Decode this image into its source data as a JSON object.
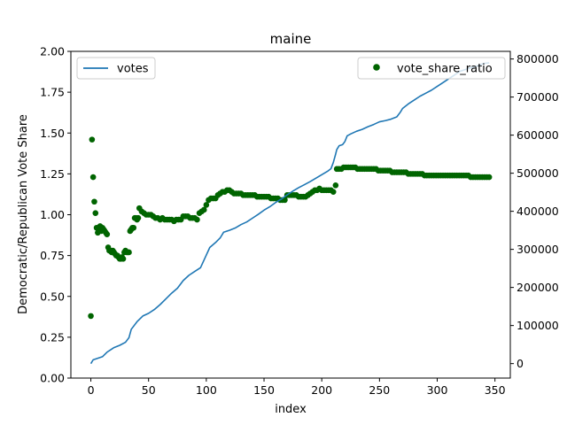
{
  "chart_data": {
    "type": "line+scatter",
    "title": "maine",
    "xlabel": "index",
    "ylabel": "Democratic/Republican Vote Share",
    "xlim": [
      -17.3,
      363.3
    ],
    "ylim": [
      0,
      2
    ],
    "y2lim": [
      -38000,
      820000
    ],
    "xticks": [
      0,
      50,
      100,
      150,
      200,
      250,
      300,
      350
    ],
    "yticks": [
      0.0,
      0.25,
      0.5,
      0.75,
      1.0,
      1.25,
      1.5,
      1.75,
      2.0
    ],
    "ytick_labels": [
      "0.00",
      "0.25",
      "0.50",
      "0.75",
      "1.00",
      "1.25",
      "1.50",
      "1.75",
      "2.00"
    ],
    "y2ticks": [
      0,
      100000,
      200000,
      300000,
      400000,
      500000,
      600000,
      700000,
      800000
    ],
    "y2tick_labels": [
      "0",
      "100000",
      "200000",
      "300000",
      "400000",
      "500000",
      "600000",
      "700000",
      "800000"
    ],
    "grid": false,
    "legend_left": {
      "placement": "upper-left",
      "entries": [
        "votes"
      ]
    },
    "legend_right": {
      "placement": "upper-right",
      "entries": [
        "vote_share_ratio"
      ]
    },
    "colors": {
      "votes": "#1f77b4",
      "vote_share_ratio": "#006400"
    },
    "votes_series": {
      "name": "votes",
      "axis": "right",
      "points": [
        [
          0,
          0
        ],
        [
          2,
          10000
        ],
        [
          10,
          18000
        ],
        [
          14,
          30000
        ],
        [
          20,
          42000
        ],
        [
          25,
          48000
        ],
        [
          30,
          56000
        ],
        [
          33,
          68000
        ],
        [
          35,
          90000
        ],
        [
          40,
          110000
        ],
        [
          45,
          125000
        ],
        [
          50,
          132000
        ],
        [
          55,
          142000
        ],
        [
          60,
          155000
        ],
        [
          65,
          170000
        ],
        [
          70,
          185000
        ],
        [
          75,
          198000
        ],
        [
          80,
          218000
        ],
        [
          85,
          232000
        ],
        [
          90,
          242000
        ],
        [
          95,
          252000
        ],
        [
          100,
          285000
        ],
        [
          103,
          305000
        ],
        [
          108,
          318000
        ],
        [
          112,
          330000
        ],
        [
          115,
          345000
        ],
        [
          120,
          350000
        ],
        [
          125,
          356000
        ],
        [
          130,
          365000
        ],
        [
          135,
          372000
        ],
        [
          140,
          382000
        ],
        [
          145,
          392000
        ],
        [
          150,
          403000
        ],
        [
          155,
          412000
        ],
        [
          160,
          423000
        ],
        [
          165,
          432000
        ],
        [
          170,
          443000
        ],
        [
          175,
          453000
        ],
        [
          180,
          462000
        ],
        [
          185,
          470000
        ],
        [
          190,
          478000
        ],
        [
          195,
          487000
        ],
        [
          200,
          496000
        ],
        [
          205,
          505000
        ],
        [
          208,
          512000
        ],
        [
          210,
          528000
        ],
        [
          212,
          550000
        ],
        [
          213,
          562000
        ],
        [
          215,
          572000
        ],
        [
          218,
          575000
        ],
        [
          220,
          583000
        ],
        [
          222,
          598000
        ],
        [
          225,
          603000
        ],
        [
          230,
          610000
        ],
        [
          235,
          615000
        ],
        [
          240,
          622000
        ],
        [
          245,
          628000
        ],
        [
          250,
          635000
        ],
        [
          255,
          638000
        ],
        [
          260,
          642000
        ],
        [
          265,
          648000
        ],
        [
          268,
          660000
        ],
        [
          270,
          670000
        ],
        [
          275,
          682000
        ],
        [
          280,
          692000
        ],
        [
          285,
          702000
        ],
        [
          290,
          710000
        ],
        [
          295,
          718000
        ],
        [
          300,
          728000
        ],
        [
          305,
          738000
        ],
        [
          310,
          748000
        ],
        [
          315,
          758000
        ],
        [
          320,
          768000
        ],
        [
          325,
          773000
        ],
        [
          330,
          778000
        ],
        [
          335,
          782000
        ],
        [
          340,
          788000
        ],
        [
          345,
          790000
        ]
      ]
    },
    "ratio_series": {
      "name": "vote_share_ratio",
      "axis": "left",
      "points": [
        [
          0,
          0.38
        ],
        [
          1,
          1.46
        ],
        [
          2,
          1.23
        ],
        [
          3,
          1.08
        ],
        [
          4,
          1.01
        ],
        [
          5,
          0.92
        ],
        [
          6,
          0.89
        ],
        [
          7,
          0.91
        ],
        [
          8,
          0.93
        ],
        [
          9,
          0.9
        ],
        [
          10,
          0.92
        ],
        [
          11,
          0.91
        ],
        [
          12,
          0.9
        ],
        [
          13,
          0.89
        ],
        [
          14,
          0.88
        ],
        [
          15,
          0.8
        ],
        [
          16,
          0.78
        ],
        [
          17,
          0.78
        ],
        [
          18,
          0.77
        ],
        [
          19,
          0.78
        ],
        [
          20,
          0.77
        ],
        [
          21,
          0.76
        ],
        [
          22,
          0.75
        ],
        [
          23,
          0.75
        ],
        [
          24,
          0.74
        ],
        [
          25,
          0.73
        ],
        [
          26,
          0.73
        ],
        [
          27,
          0.74
        ],
        [
          28,
          0.73
        ],
        [
          29,
          0.77
        ],
        [
          30,
          0.78
        ],
        [
          31,
          0.77
        ],
        [
          32,
          0.77
        ],
        [
          33,
          0.77
        ],
        [
          34,
          0.9
        ],
        [
          35,
          0.91
        ],
        [
          36,
          0.92
        ],
        [
          37,
          0.92
        ],
        [
          38,
          0.98
        ],
        [
          39,
          0.98
        ],
        [
          40,
          0.97
        ],
        [
          41,
          0.98
        ],
        [
          42,
          1.04
        ],
        [
          44,
          1.02
        ],
        [
          46,
          1.01
        ],
        [
          48,
          1.0
        ],
        [
          50,
          1.0
        ],
        [
          52,
          1.0
        ],
        [
          54,
          0.99
        ],
        [
          56,
          0.98
        ],
        [
          58,
          0.98
        ],
        [
          60,
          0.97
        ],
        [
          62,
          0.98
        ],
        [
          64,
          0.97
        ],
        [
          66,
          0.97
        ],
        [
          68,
          0.97
        ],
        [
          70,
          0.97
        ],
        [
          72,
          0.96
        ],
        [
          74,
          0.97
        ],
        [
          76,
          0.97
        ],
        [
          78,
          0.97
        ],
        [
          80,
          0.99
        ],
        [
          82,
          0.99
        ],
        [
          84,
          0.99
        ],
        [
          86,
          0.98
        ],
        [
          88,
          0.98
        ],
        [
          90,
          0.98
        ],
        [
          92,
          0.97
        ],
        [
          94,
          1.01
        ],
        [
          96,
          1.02
        ],
        [
          98,
          1.03
        ],
        [
          100,
          1.06
        ],
        [
          102,
          1.09
        ],
        [
          104,
          1.1
        ],
        [
          106,
          1.1
        ],
        [
          108,
          1.1
        ],
        [
          110,
          1.12
        ],
        [
          112,
          1.13
        ],
        [
          114,
          1.14
        ],
        [
          116,
          1.14
        ],
        [
          118,
          1.15
        ],
        [
          120,
          1.15
        ],
        [
          122,
          1.14
        ],
        [
          124,
          1.13
        ],
        [
          126,
          1.13
        ],
        [
          128,
          1.13
        ],
        [
          130,
          1.13
        ],
        [
          132,
          1.12
        ],
        [
          134,
          1.12
        ],
        [
          136,
          1.12
        ],
        [
          138,
          1.12
        ],
        [
          140,
          1.12
        ],
        [
          142,
          1.12
        ],
        [
          144,
          1.11
        ],
        [
          146,
          1.11
        ],
        [
          148,
          1.11
        ],
        [
          150,
          1.11
        ],
        [
          152,
          1.11
        ],
        [
          154,
          1.11
        ],
        [
          156,
          1.1
        ],
        [
          158,
          1.1
        ],
        [
          160,
          1.1
        ],
        [
          162,
          1.1
        ],
        [
          164,
          1.09
        ],
        [
          166,
          1.09
        ],
        [
          168,
          1.09
        ],
        [
          170,
          1.12
        ],
        [
          172,
          1.12
        ],
        [
          174,
          1.12
        ],
        [
          176,
          1.12
        ],
        [
          178,
          1.12
        ],
        [
          180,
          1.11
        ],
        [
          182,
          1.11
        ],
        [
          184,
          1.11
        ],
        [
          186,
          1.11
        ],
        [
          188,
          1.12
        ],
        [
          190,
          1.13
        ],
        [
          192,
          1.14
        ],
        [
          194,
          1.15
        ],
        [
          196,
          1.15
        ],
        [
          198,
          1.16
        ],
        [
          200,
          1.15
        ],
        [
          202,
          1.15
        ],
        [
          204,
          1.15
        ],
        [
          206,
          1.15
        ],
        [
          208,
          1.15
        ],
        [
          210,
          1.14
        ],
        [
          212,
          1.18
        ],
        [
          213,
          1.28
        ],
        [
          215,
          1.28
        ],
        [
          217,
          1.28
        ],
        [
          219,
          1.29
        ],
        [
          221,
          1.29
        ],
        [
          223,
          1.29
        ],
        [
          225,
          1.29
        ],
        [
          227,
          1.29
        ],
        [
          229,
          1.29
        ],
        [
          231,
          1.28
        ],
        [
          233,
          1.28
        ],
        [
          235,
          1.28
        ],
        [
          237,
          1.28
        ],
        [
          239,
          1.28
        ],
        [
          241,
          1.28
        ],
        [
          243,
          1.28
        ],
        [
          245,
          1.28
        ],
        [
          247,
          1.28
        ],
        [
          249,
          1.27
        ],
        [
          251,
          1.27
        ],
        [
          253,
          1.27
        ],
        [
          255,
          1.27
        ],
        [
          257,
          1.27
        ],
        [
          259,
          1.27
        ],
        [
          261,
          1.26
        ],
        [
          263,
          1.26
        ],
        [
          265,
          1.26
        ],
        [
          267,
          1.26
        ],
        [
          269,
          1.26
        ],
        [
          271,
          1.26
        ],
        [
          273,
          1.26
        ],
        [
          275,
          1.25
        ],
        [
          277,
          1.25
        ],
        [
          279,
          1.25
        ],
        [
          281,
          1.25
        ],
        [
          283,
          1.25
        ],
        [
          285,
          1.25
        ],
        [
          287,
          1.25
        ],
        [
          289,
          1.24
        ],
        [
          291,
          1.24
        ],
        [
          293,
          1.24
        ],
        [
          295,
          1.24
        ],
        [
          297,
          1.24
        ],
        [
          299,
          1.24
        ],
        [
          301,
          1.24
        ],
        [
          303,
          1.24
        ],
        [
          305,
          1.24
        ],
        [
          307,
          1.24
        ],
        [
          309,
          1.24
        ],
        [
          311,
          1.24
        ],
        [
          313,
          1.24
        ],
        [
          315,
          1.24
        ],
        [
          317,
          1.24
        ],
        [
          319,
          1.24
        ],
        [
          321,
          1.24
        ],
        [
          323,
          1.24
        ],
        [
          325,
          1.24
        ],
        [
          327,
          1.24
        ],
        [
          329,
          1.23
        ],
        [
          331,
          1.23
        ],
        [
          333,
          1.23
        ],
        [
          335,
          1.23
        ],
        [
          337,
          1.23
        ],
        [
          339,
          1.23
        ],
        [
          341,
          1.23
        ],
        [
          343,
          1.23
        ],
        [
          345,
          1.23
        ]
      ]
    }
  }
}
